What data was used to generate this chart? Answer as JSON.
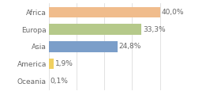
{
  "categories": [
    "Africa",
    "Europa",
    "Asia",
    "America",
    "Oceania"
  ],
  "values": [
    40.0,
    33.3,
    24.8,
    1.9,
    0.1
  ],
  "bar_colors": [
    "#f0bc8c",
    "#b5c98a",
    "#7b9ec9",
    "#f0d060",
    "#d0d0d0"
  ],
  "labels": [
    "40,0%",
    "33,3%",
    "24,8%",
    "1,9%",
    "0,1%"
  ],
  "xlim": [
    0,
    50
  ],
  "background_color": "#ffffff",
  "bar_height": 0.62,
  "label_fontsize": 6.5,
  "tick_fontsize": 6.5,
  "grid_color": "#dddddd",
  "text_color": "#666666",
  "grid_positions": [
    0,
    10,
    20,
    30,
    40
  ]
}
